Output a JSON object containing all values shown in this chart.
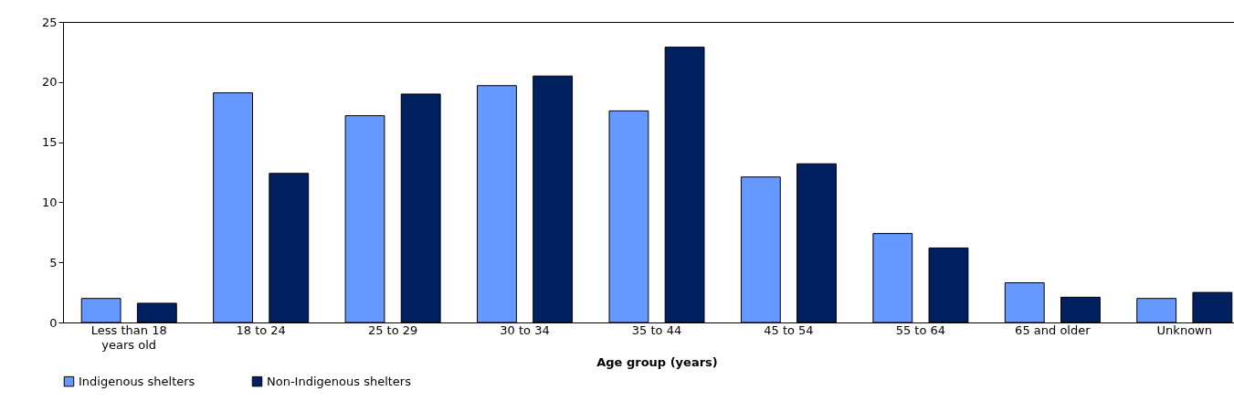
{
  "chart_data": {
    "type": "bar",
    "xlabel": "Age group (years)",
    "categories": [
      "Less than 18 years old",
      "18 to 24",
      "25 to 29",
      "30 to 34",
      "35 to 44",
      "45 to 54",
      "55 to 64",
      "65 and older",
      "Unknown"
    ],
    "series": [
      {
        "name": "Indigenous shelters",
        "color": "#6699ff",
        "values": [
          2.0,
          19.1,
          17.2,
          19.7,
          17.6,
          12.1,
          7.4,
          3.3,
          2.0
        ]
      },
      {
        "name": "Non-Indigenous shelters",
        "color": "#002060",
        "values": [
          1.6,
          12.4,
          19.0,
          20.5,
          22.9,
          13.2,
          6.2,
          2.1,
          2.5
        ]
      }
    ],
    "ylim": [
      0,
      25
    ],
    "yticks": [
      0,
      5,
      10,
      15,
      20,
      25
    ],
    "grid": false,
    "legend": "bottom"
  }
}
